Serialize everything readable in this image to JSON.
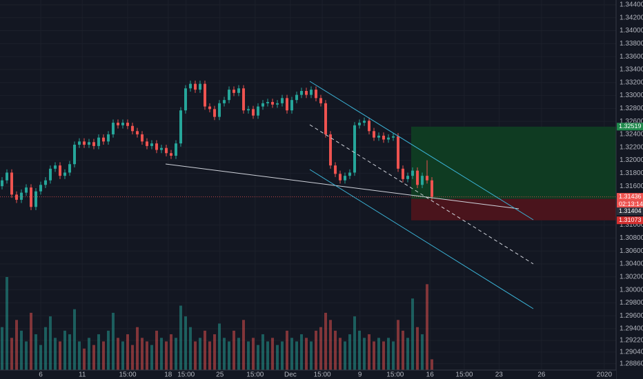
{
  "chart_data": {
    "type": "candlestick",
    "xlim": [
      -0.43,
      127.14
    ],
    "ylim": [
      1.28762,
      1.34474
    ],
    "grid": true,
    "up_color": "#26a69a",
    "down_color": "#ef5350",
    "xticks": [
      {
        "value": 8,
        "label": "6"
      },
      {
        "value": 16.6,
        "label": "11"
      },
      {
        "value": 26,
        "label": "15:00"
      },
      {
        "value": 34.4,
        "label": "18"
      },
      {
        "value": 38.1,
        "label": "15:00"
      },
      {
        "value": 45.1,
        "label": "25"
      },
      {
        "value": 52.4,
        "label": "15:00"
      },
      {
        "value": 59.7,
        "label": "Dec"
      },
      {
        "value": 66.3,
        "label": "15:00"
      },
      {
        "value": 74.1,
        "label": "9"
      },
      {
        "value": 81.4,
        "label": "15:00"
      },
      {
        "value": 88.6,
        "label": "16"
      },
      {
        "value": 95.7,
        "label": "15:00"
      },
      {
        "value": 102.9,
        "label": "23"
      },
      {
        "value": 111.7,
        "label": "26"
      },
      {
        "value": 124.7,
        "label": "2020"
      }
    ],
    "yticks": [
      {
        "value": 1.344,
        "label": "1.34400"
      },
      {
        "value": 1.342,
        "label": "1.34200"
      },
      {
        "value": 1.34,
        "label": "1.34000"
      },
      {
        "value": 1.338,
        "label": "1.33800"
      },
      {
        "value": 1.336,
        "label": "1.33600"
      },
      {
        "value": 1.334,
        "label": "1.33400"
      },
      {
        "value": 1.332,
        "label": "1.33200"
      },
      {
        "value": 1.33,
        "label": "1.33000"
      },
      {
        "value": 1.328,
        "label": "1.32800"
      },
      {
        "value": 1.326,
        "label": "1.32600"
      },
      {
        "value": 1.324,
        "label": "1.32400"
      },
      {
        "value": 1.322,
        "label": "1.32200"
      },
      {
        "value": 1.32,
        "label": "1.32000"
      },
      {
        "value": 1.318,
        "label": "1.31800"
      },
      {
        "value": 1.316,
        "label": "1.31600"
      },
      {
        "value": 1.31,
        "label": "1.31000"
      },
      {
        "value": 1.308,
        "label": "1.30800"
      },
      {
        "value": 1.306,
        "label": "1.30600"
      },
      {
        "value": 1.304,
        "label": "1.30400"
      },
      {
        "value": 1.302,
        "label": "1.30200"
      },
      {
        "value": 1.3,
        "label": "1.30000"
      },
      {
        "value": 1.298,
        "label": "1.29800"
      },
      {
        "value": 1.296,
        "label": "1.29600"
      },
      {
        "value": 1.294,
        "label": "1.29400"
      },
      {
        "value": 1.2922,
        "label": "1.29220"
      },
      {
        "value": 1.2904,
        "label": "1.29040"
      },
      {
        "value": 1.2886,
        "label": "1.28860"
      }
    ],
    "ohlc": {
      "open": [
        1.316,
        1.3169,
        1.3181,
        1.3147,
        1.3139,
        1.315,
        1.3158,
        1.3128,
        1.3152,
        1.3162,
        1.3169,
        1.3187,
        1.3192,
        1.3176,
        1.3181,
        1.3194,
        1.3224,
        1.3229,
        1.3224,
        1.3228,
        1.3222,
        1.3235,
        1.3229,
        1.324,
        1.3258,
        1.3254,
        1.3258,
        1.3253,
        1.3245,
        1.324,
        1.3229,
        1.3222,
        1.3226,
        1.3216,
        1.3219,
        1.3211,
        1.3207,
        1.3226,
        1.3277,
        1.3311,
        1.3318,
        1.3309,
        1.3318,
        1.3283,
        1.3279,
        1.3267,
        1.3288,
        1.3293,
        1.3309,
        1.3304,
        1.3311,
        1.3277,
        1.3279,
        1.3269,
        1.3283,
        1.3288,
        1.329,
        1.3286,
        1.3288,
        1.3296,
        1.3277,
        1.3293,
        1.3301,
        1.3307,
        1.3301,
        1.3309,
        1.3296,
        1.3288,
        1.324,
        1.3192,
        1.3179,
        1.3169,
        1.3176,
        1.3181,
        1.3254,
        1.3258,
        1.3261,
        1.3245,
        1.3235,
        1.3238,
        1.3232,
        1.3235,
        1.3237,
        1.3187,
        1.3171,
        1.3176,
        1.3184,
        1.3162,
        1.3176,
        1.3169
      ],
      "high": [
        1.3174,
        1.3186,
        1.3186,
        1.3152,
        1.3155,
        1.3163,
        1.3163,
        1.3157,
        1.3167,
        1.3174,
        1.3192,
        1.3197,
        1.3197,
        1.3186,
        1.3199,
        1.3229,
        1.3234,
        1.3234,
        1.3233,
        1.3233,
        1.324,
        1.324,
        1.3245,
        1.3263,
        1.3263,
        1.3263,
        1.3263,
        1.3258,
        1.325,
        1.3245,
        1.3234,
        1.3231,
        1.3231,
        1.3224,
        1.3224,
        1.3216,
        1.3231,
        1.3282,
        1.3316,
        1.3323,
        1.3323,
        1.3323,
        1.3323,
        1.3288,
        1.3284,
        1.3293,
        1.3298,
        1.3314,
        1.3314,
        1.3316,
        1.3316,
        1.3284,
        1.3284,
        1.3288,
        1.3293,
        1.3295,
        1.3295,
        1.3293,
        1.3301,
        1.3301,
        1.3298,
        1.3306,
        1.3312,
        1.3312,
        1.3314,
        1.3314,
        1.3301,
        1.3293,
        1.3245,
        1.3197,
        1.3184,
        1.3181,
        1.3186,
        1.3259,
        1.3263,
        1.3266,
        1.3266,
        1.325,
        1.3243,
        1.3243,
        1.324,
        1.3242,
        1.3242,
        1.3192,
        1.3181,
        1.3189,
        1.3189,
        1.3181,
        1.32,
        1.3174
      ],
      "low": [
        1.3155,
        1.3164,
        1.3142,
        1.3134,
        1.3134,
        1.3145,
        1.3123,
        1.3123,
        1.3147,
        1.3157,
        1.3164,
        1.3182,
        1.3171,
        1.3171,
        1.3176,
        1.3189,
        1.3219,
        1.3219,
        1.3219,
        1.3217,
        1.3217,
        1.3224,
        1.3224,
        1.3235,
        1.3249,
        1.3249,
        1.3248,
        1.324,
        1.3235,
        1.3224,
        1.3217,
        1.3217,
        1.3211,
        1.3211,
        1.3206,
        1.3202,
        1.3202,
        1.3221,
        1.3272,
        1.3306,
        1.3304,
        1.3304,
        1.3278,
        1.3274,
        1.3262,
        1.3262,
        1.3283,
        1.3288,
        1.3299,
        1.3299,
        1.3272,
        1.3272,
        1.3264,
        1.3264,
        1.3278,
        1.3283,
        1.3281,
        1.3281,
        1.3283,
        1.3272,
        1.3272,
        1.3288,
        1.3296,
        1.3296,
        1.3296,
        1.3291,
        1.3283,
        1.3235,
        1.3187,
        1.3174,
        1.3164,
        1.3164,
        1.3171,
        1.3176,
        1.3249,
        1.3253,
        1.324,
        1.323,
        1.323,
        1.3227,
        1.3227,
        1.323,
        1.3182,
        1.3166,
        1.3166,
        1.3171,
        1.3157,
        1.3157,
        1.3164,
        1.3139
      ],
      "close": [
        1.3169,
        1.3181,
        1.3147,
        1.3139,
        1.315,
        1.3158,
        1.3128,
        1.3152,
        1.3162,
        1.3169,
        1.3187,
        1.3192,
        1.3176,
        1.3181,
        1.3194,
        1.3224,
        1.3229,
        1.3224,
        1.3228,
        1.3222,
        1.3235,
        1.3229,
        1.324,
        1.3258,
        1.3254,
        1.3258,
        1.3253,
        1.3245,
        1.324,
        1.3229,
        1.3222,
        1.3226,
        1.3216,
        1.3219,
        1.3211,
        1.3207,
        1.3226,
        1.3277,
        1.3311,
        1.3318,
        1.3309,
        1.3318,
        1.3283,
        1.3279,
        1.3267,
        1.3288,
        1.3293,
        1.3309,
        1.3304,
        1.3311,
        1.3277,
        1.3279,
        1.3269,
        1.3283,
        1.3288,
        1.329,
        1.3286,
        1.3288,
        1.3296,
        1.3277,
        1.3293,
        1.3301,
        1.3307,
        1.3301,
        1.3309,
        1.3296,
        1.3288,
        1.324,
        1.3192,
        1.3179,
        1.3169,
        1.3176,
        1.3181,
        1.3254,
        1.3258,
        1.3261,
        1.3245,
        1.3235,
        1.3238,
        1.3232,
        1.3235,
        1.3237,
        1.3187,
        1.3171,
        1.3176,
        1.3184,
        1.3162,
        1.3176,
        1.3169,
        1.31436
      ]
    },
    "volume": [
      60,
      130,
      45,
      70,
      55,
      40,
      80,
      50,
      35,
      60,
      75,
      45,
      40,
      55,
      50,
      85,
      40,
      30,
      45,
      35,
      50,
      40,
      55,
      80,
      45,
      40,
      50,
      35,
      60,
      45,
      40,
      35,
      55,
      45,
      40,
      50,
      45,
      90,
      75,
      60,
      40,
      45,
      55,
      40,
      50,
      65,
      45,
      40,
      55,
      45,
      70,
      40,
      45,
      35,
      50,
      40,
      45,
      35,
      40,
      55,
      45,
      40,
      50,
      45,
      40,
      55,
      60,
      80,
      70,
      55,
      45,
      40,
      50,
      75,
      55,
      45,
      50,
      40,
      45,
      40,
      45,
      40,
      70,
      55,
      45,
      100,
      60,
      50,
      120,
      15
    ],
    "position": {
      "take_profit": 1.32519,
      "entry": 1.31404,
      "stop_loss": 1.31073
    },
    "last_price": 1.31436,
    "countdown": "02:13:14"
  }
}
